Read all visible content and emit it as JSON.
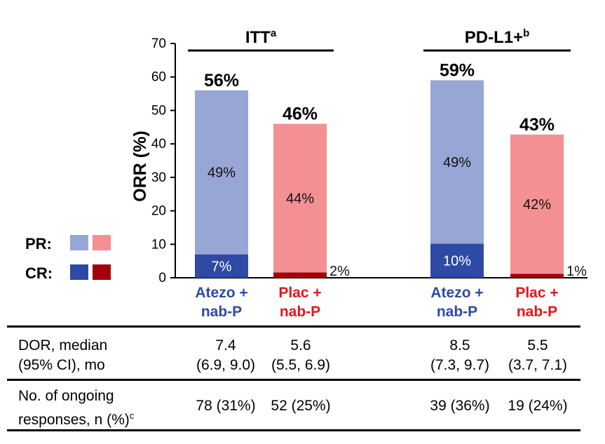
{
  "chart_data": {
    "type": "bar",
    "stacked": true,
    "ylabel": "ORR (%)",
    "ylim": [
      0,
      70
    ],
    "yticks": [
      0,
      10,
      20,
      30,
      40,
      50,
      60,
      70
    ],
    "groups": [
      {
        "title": "ITT",
        "title_sup": "a",
        "bars": [
          {
            "label_line1": "Atezo +",
            "label_line2": "nab-P",
            "arm": "atezo",
            "cr": 7,
            "pr": 49,
            "total": 56,
            "cr_label": "7%",
            "pr_label": "49%",
            "total_label": "56%"
          },
          {
            "label_line1": "Plac +",
            "label_line2": "nab-P",
            "arm": "plac",
            "cr": 1.6,
            "pr": 44.4,
            "total": 46,
            "cr_label": "2%",
            "pr_label": "44%",
            "total_label": "46%"
          }
        ]
      },
      {
        "title": "PD-L1+",
        "title_sup": "b",
        "bars": [
          {
            "label_line1": "Atezo +",
            "label_line2": "nab-P",
            "arm": "atezo",
            "cr": 10.2,
            "pr": 48.8,
            "total": 59,
            "cr_label": "10%",
            "pr_label": "49%",
            "total_label": "59%"
          },
          {
            "label_line1": "Plac +",
            "label_line2": "nab-P",
            "arm": "plac",
            "cr": 1.2,
            "pr": 41.6,
            "total": 42.8,
            "cr_label": "1%",
            "pr_label": "42%",
            "total_label": "43%"
          }
        ]
      }
    ],
    "colors": {
      "atezo_pr": "#97a6d4",
      "atezo_cr": "#2e4aa4",
      "plac_pr": "#f39093",
      "plac_cr": "#a3000b",
      "atezo_text": "#2e4aa4",
      "plac_text": "#e8141e"
    }
  },
  "legend": {
    "pr_label": "PR:",
    "cr_label": "CR:"
  },
  "table": {
    "row1": {
      "label_line1": "DOR, median",
      "label_line2": "(95% CI), mo",
      "cells": [
        {
          "line1": "7.4",
          "line2": "(6.9, 9.0)"
        },
        {
          "line1": "5.6",
          "line2": "(5.5, 6.9)"
        },
        {
          "line1": "8.5",
          "line2": "(7.3, 9.7)"
        },
        {
          "line1": "5.5",
          "line2": "(3.7, 7.1)"
        }
      ]
    },
    "row2": {
      "label_line1": "No. of ongoing",
      "label_line2": "responses, n (%)",
      "label_sup": "c",
      "cells": [
        "78 (31%)",
        "52 (25%)",
        "39 (36%)",
        "19 (24%)"
      ]
    }
  }
}
